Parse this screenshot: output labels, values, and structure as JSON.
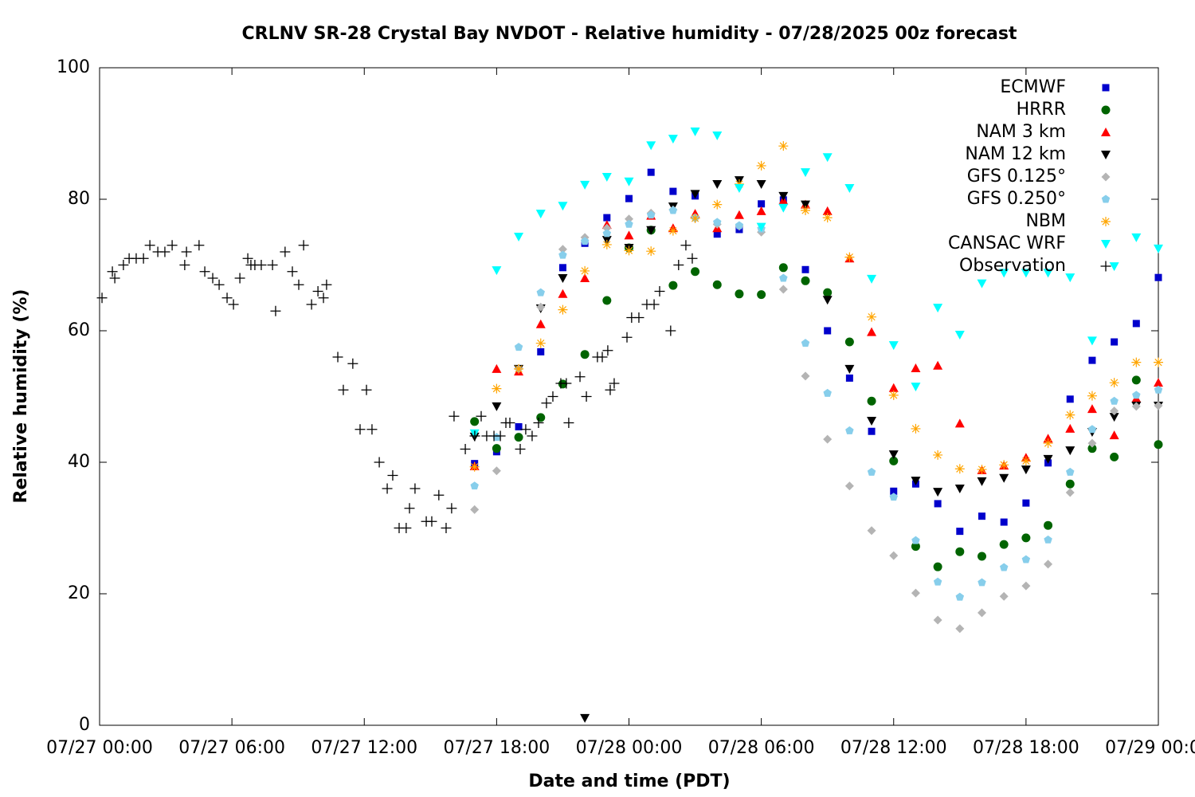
{
  "chart_data": {
    "type": "scatter",
    "title": "CRLNV SR-28 Crystal Bay NVDOT - Relative humidity - 07/28/2025 00z forecast",
    "xlabel": "Date and time (PDT)",
    "ylabel": "Relative humidity (%)",
    "xlim": [
      0,
      48
    ],
    "ylim": [
      0,
      100
    ],
    "xticks": [
      {
        "value": 0,
        "label": "07/27 00:00"
      },
      {
        "value": 6,
        "label": "07/27 06:00"
      },
      {
        "value": 12,
        "label": "07/27 12:00"
      },
      {
        "value": 18,
        "label": "07/27 18:00"
      },
      {
        "value": 24,
        "label": "07/28 00:00"
      },
      {
        "value": 30,
        "label": "07/28 06:00"
      },
      {
        "value": 36,
        "label": "07/28 12:00"
      },
      {
        "value": 42,
        "label": "07/28 18:00"
      },
      {
        "value": 48,
        "label": "07/29 00:00"
      }
    ],
    "yticks": [
      0,
      20,
      40,
      60,
      80,
      100
    ],
    "grid": false,
    "legend": "top-right",
    "x": [
      17,
      18,
      19,
      20,
      21,
      22,
      23,
      24,
      25,
      26,
      27,
      28,
      29,
      30,
      31,
      32,
      33,
      34,
      35,
      36,
      37,
      38,
      39,
      40,
      41,
      42,
      43,
      44,
      45,
      46,
      47,
      48
    ],
    "series": [
      {
        "name": "ECMWF",
        "color": "#0000cc",
        "marker": "square",
        "values": [
          39.8,
          41.6,
          45.4,
          56.8,
          69.6,
          73.3,
          77.2,
          80.1,
          84.1,
          81.2,
          80.5,
          74.7,
          75.4,
          79.3,
          79.9,
          69.3,
          60.0,
          52.8,
          44.7,
          35.6,
          36.7,
          33.7,
          29.5,
          31.8,
          30.9,
          33.8,
          39.9,
          49.6,
          55.5,
          58.3,
          61.1,
          68.1
        ]
      },
      {
        "name": "HRRR",
        "color": "#006400",
        "marker": "circle",
        "values": [
          46.2,
          42.1,
          43.8,
          46.8,
          51.9,
          56.4,
          64.6,
          72.6,
          75.3,
          66.9,
          69.0,
          67.0,
          65.6,
          65.5,
          69.6,
          67.6,
          65.8,
          58.3,
          49.3,
          40.2,
          27.2,
          24.1,
          26.4,
          25.7,
          27.5,
          28.5,
          30.4,
          36.7,
          42.1,
          40.8,
          52.5,
          42.7
        ]
      },
      {
        "name": "NAM 3 km",
        "color": "#ff0000",
        "marker": "triangle-up",
        "values": [
          39.4,
          54.2,
          53.8,
          61.0,
          65.6,
          68.0,
          76.1,
          74.5,
          77.5,
          75.6,
          77.8,
          75.6,
          77.6,
          78.2,
          79.8,
          79.2,
          78.2,
          71.0,
          59.8,
          51.3,
          54.3,
          54.7,
          45.9,
          38.8,
          39.5,
          40.7,
          43.6,
          45.1,
          48.1,
          44.1,
          49.7,
          52.1
        ]
      },
      {
        "name": "NAM 12 km",
        "color": "#000000",
        "marker": "triangle-down",
        "values": [
          43.9,
          48.5,
          54.2,
          63.4,
          68.0,
          1.1,
          73.8,
          72.6,
          75.3,
          78.9,
          80.8,
          82.3,
          82.9,
          82.3,
          80.5,
          79.2,
          64.7,
          54.2,
          46.3,
          41.2,
          37.2,
          35.5,
          36.0,
          37.1,
          37.6,
          38.9,
          40.5,
          41.8,
          44.6,
          46.9,
          48.6,
          48.6
        ]
      },
      {
        "name": "GFS 0.125°",
        "color": "#b4b4b4",
        "marker": "diamond",
        "values": [
          32.8,
          38.7,
          54.2,
          63.6,
          72.4,
          74.2,
          75.6,
          77.0,
          77.9,
          78.4,
          77.1,
          76.2,
          75.9,
          75.0,
          66.3,
          53.1,
          43.5,
          36.4,
          29.6,
          25.8,
          20.1,
          16.0,
          14.7,
          17.1,
          19.6,
          21.2,
          24.5,
          35.4,
          42.9,
          47.8,
          48.5,
          48.6
        ]
      },
      {
        "name": "GFS 0.250°",
        "color": "#87ceeb",
        "marker": "pentagon",
        "values": [
          36.4,
          43.8,
          57.5,
          65.8,
          71.5,
          73.6,
          74.8,
          76.2,
          77.6,
          78.3,
          77.2,
          76.5,
          76.0,
          75.5,
          68.0,
          58.1,
          50.5,
          44.8,
          38.5,
          34.7,
          28.1,
          21.8,
          19.5,
          21.7,
          24.0,
          25.2,
          28.2,
          38.5,
          45.0,
          49.3,
          50.2,
          51.0
        ]
      },
      {
        "name": "NBM",
        "color": "#ffa500",
        "marker": "asterisk",
        "values": [
          39.3,
          51.2,
          54.2,
          58.1,
          63.2,
          69.1,
          73.1,
          72.2,
          72.1,
          75.2,
          77.1,
          79.2,
          82.3,
          85.1,
          88.1,
          78.3,
          77.2,
          71.2,
          62.1,
          50.2,
          45.1,
          41.1,
          39.0,
          38.9,
          39.6,
          40.2,
          42.9,
          47.2,
          50.1,
          52.1,
          55.2,
          55.2
        ]
      },
      {
        "name": "CANSAC WRF",
        "color": "#00ffff",
        "marker": "triangle-down",
        "values": [
          44.4,
          69.2,
          74.3,
          77.8,
          79.0,
          82.2,
          83.4,
          82.7,
          88.2,
          89.2,
          90.3,
          89.7,
          81.7,
          75.8,
          78.7,
          84.1,
          86.4,
          81.7,
          67.9,
          57.8,
          51.5,
          63.5,
          59.4,
          67.2,
          68.8,
          68.8,
          68.8,
          68.1,
          58.5,
          69.8,
          74.2,
          72.5
        ]
      },
      {
        "name": "Observation",
        "color": "#000000",
        "marker": "plus",
        "x": [
          0.11,
          0.58,
          0.69,
          1.08,
          1.34,
          1.66,
          1.99,
          2.28,
          2.64,
          2.96,
          3.29,
          3.94,
          3.86,
          4.51,
          4.77,
          5.13,
          5.42,
          5.78,
          6.07,
          6.36,
          6.72,
          6.86,
          7.04,
          7.33,
          7.84,
          7.98,
          8.41,
          8.74,
          9.03,
          9.25,
          9.61,
          9.9,
          10.15,
          10.29,
          10.8,
          11.05,
          11.48,
          11.81,
          12.1,
          12.35,
          12.68,
          13.04,
          13.29,
          13.58,
          13.9,
          14.05,
          14.3,
          14.81,
          15.06,
          15.38,
          15.71,
          15.96,
          16.07,
          16.58,
          17.01,
          17.3,
          17.55,
          17.88,
          18.17,
          18.42,
          18.6,
          19.07,
          19.32,
          19.61,
          19.9,
          20.26,
          20.55,
          20.91,
          21.16,
          21.27,
          21.78,
          22.07,
          22.57,
          22.79,
          23.04,
          23.15,
          23.33,
          23.91,
          24.12,
          24.45,
          24.81,
          25.14,
          25.39,
          25.89,
          26.25,
          26.58,
          26.87
        ],
        "values": [
          65,
          69,
          68,
          70,
          71,
          71,
          71,
          73,
          72,
          72,
          73,
          72,
          70,
          73,
          69,
          68,
          67,
          65,
          64,
          68,
          71,
          70,
          70,
          70,
          70,
          63,
          72,
          69,
          67,
          73,
          64,
          66,
          65,
          67,
          56,
          51,
          55,
          45,
          51,
          45,
          40,
          36,
          38,
          30,
          30,
          33,
          36,
          31,
          31,
          35,
          30,
          33,
          47,
          42,
          44,
          47,
          44,
          44,
          44,
          46,
          46,
          42,
          45,
          44,
          46,
          49,
          50,
          52,
          52,
          46,
          53,
          50,
          56,
          56,
          57,
          51,
          52,
          59,
          62,
          62,
          64,
          64,
          66,
          60,
          70,
          73,
          71
        ]
      }
    ]
  }
}
